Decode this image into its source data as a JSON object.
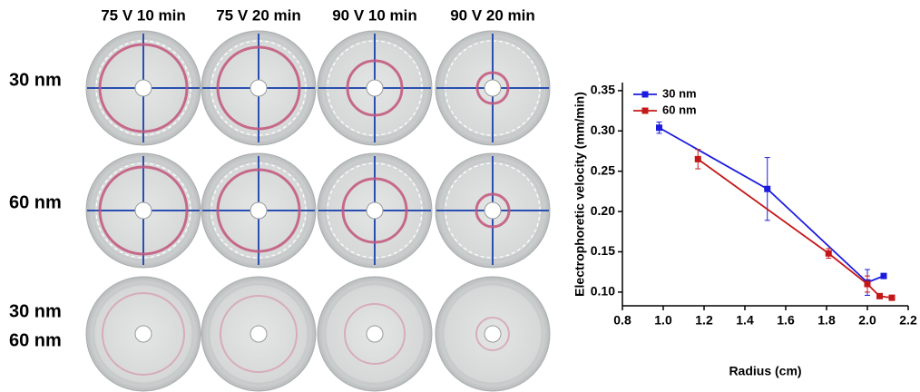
{
  "photos": {
    "columns": [
      "75 V 10 min",
      "75 V 20 min",
      "90 V 10 min",
      "90 V 20 min"
    ],
    "rows": [
      [
        "30 nm"
      ],
      [
        "60 nm"
      ],
      [
        "30 nm",
        "60 nm"
      ]
    ]
  },
  "chart_data": {
    "type": "line",
    "xlabel": "Radius (cm)",
    "ylabel": "Electrophoretic velocity (mm/min)",
    "xlim": [
      0.8,
      2.2
    ],
    "xticks": [
      0.8,
      {
        "value": 1,
        "label": "1.0"
      },
      1.2,
      1.4,
      1.6,
      1.8,
      {
        "value": 2,
        "label": "2.0"
      },
      2.2
    ],
    "ylim": [
      0.083,
      0.36
    ],
    "yticks": [
      {
        "value": 0.1,
        "label": "0.10"
      },
      0.15,
      {
        "value": 0.2,
        "label": "0.20"
      },
      0.25,
      {
        "value": 0.3,
        "label": "0.30"
      },
      0.35
    ],
    "legend": "top-left",
    "series": [
      {
        "name": "30 nm",
        "color": "#1c1ce0",
        "x": [
          0.98,
          1.51,
          2.0,
          2.08
        ],
        "values": [
          0.304,
          0.228,
          0.112,
          0.12
        ],
        "errors": [
          0.007,
          0.039,
          0.016,
          0
        ]
      },
      {
        "name": "60 nm",
        "color": "#c41818",
        "x": [
          1.17,
          1.81,
          2.0,
          2.06,
          2.12
        ],
        "values": [
          0.265,
          0.148,
          0.11,
          0.095,
          0.093
        ],
        "errors": [
          0.012,
          0.006,
          0.01,
          0,
          0
        ]
      }
    ]
  }
}
